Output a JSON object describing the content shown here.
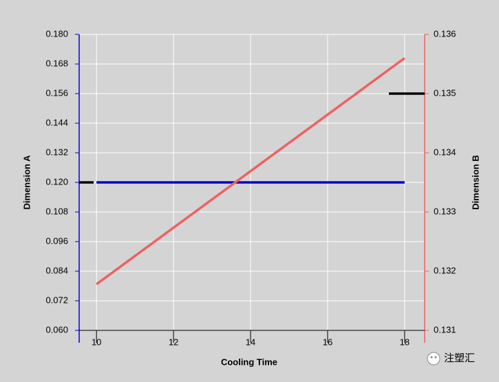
{
  "chart_data": {
    "type": "line",
    "xlabel": "Cooling Time",
    "ylabel": "Dimension A",
    "y2label": "Dimension B",
    "x": [
      10,
      18
    ],
    "series": [
      {
        "color": "#0000cc",
        "values": [
          0.12,
          0.12
        ]
      },
      {
        "color": "#f06060",
        "axis": "y2",
        "values": [
          0.13178,
          0.1356
        ]
      }
    ],
    "markers": [
      {
        "axis": "y",
        "value": 0.12,
        "side": "left",
        "color": "#000000"
      },
      {
        "axis": "y2",
        "value": 0.135,
        "side": "right",
        "color": "#000000"
      }
    ],
    "xlim": [
      9.55,
      18.52
    ],
    "xticks": [
      10,
      12,
      14,
      16,
      18
    ],
    "ylim": [
      0.06,
      0.18
    ],
    "yticks": [
      {
        "value": 0.06,
        "label": "0.060"
      },
      0.072,
      0.084,
      0.096,
      0.108,
      {
        "value": 0.12,
        "label": "0.120"
      },
      0.132,
      0.144,
      0.156,
      0.168,
      {
        "value": 0.18,
        "label": "0.180"
      }
    ],
    "y2lim": [
      0.131,
      0.136
    ],
    "y2ticks": [
      0.131,
      0.132,
      0.133,
      0.134,
      0.135,
      0.136
    ],
    "grid": true,
    "watermark": "注塑汇"
  }
}
